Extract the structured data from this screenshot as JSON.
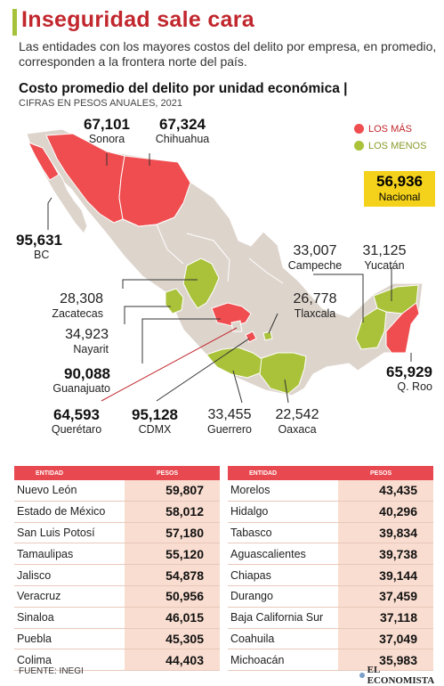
{
  "header": {
    "title": "Inseguridad sale cara",
    "subtitle": "Las entidades con los mayores costos del delito por empresa, en promedio, corresponden a la frontera norte del país."
  },
  "chart_data": {
    "type": "map",
    "title": "Costo promedio del delito por unidad económica",
    "unit": "CIFRAS EN PESOS ANUALES, 2021",
    "legend": [
      {
        "name": "LOS MÁS",
        "color": "#ef4d4f"
      },
      {
        "name": "LOS MENOS",
        "color": "#a9c23a"
      }
    ],
    "nacional": {
      "value": "56,936",
      "label": "Nacional"
    },
    "map_labels": [
      {
        "state": "Sonora",
        "value": "67,101",
        "group": "mas"
      },
      {
        "state": "Chihuahua",
        "value": "67,324",
        "group": "mas"
      },
      {
        "state": "BC",
        "value": "95,631",
        "group": "mas"
      },
      {
        "state": "Zacatecas",
        "value": "28,308",
        "group": "menos"
      },
      {
        "state": "Nayarit",
        "value": "34,923",
        "group": "menos"
      },
      {
        "state": "Guanajuato",
        "value": "90,088",
        "group": "mas"
      },
      {
        "state": "Querétaro",
        "value": "64,593",
        "group": "mas"
      },
      {
        "state": "CDMX",
        "value": "95,128",
        "group": "mas"
      },
      {
        "state": "Guerrero",
        "value": "33,455",
        "group": "menos"
      },
      {
        "state": "Oaxaca",
        "value": "22,542",
        "group": "menos"
      },
      {
        "state": "Campeche",
        "value": "33,007",
        "group": "menos"
      },
      {
        "state": "Yucatán",
        "value": "31,125",
        "group": "menos"
      },
      {
        "state": "Tlaxcala",
        "value": "26,778",
        "group": "menos"
      },
      {
        "state": "Q. Roo",
        "value": "65,929",
        "group": "mas"
      }
    ],
    "table_headers": {
      "entidad": "ENTIDAD",
      "pesos": "PESOS"
    },
    "table_left": [
      {
        "entidad": "Nuevo León",
        "pesos": "59,807"
      },
      {
        "entidad": "Estado de México",
        "pesos": "58,012"
      },
      {
        "entidad": "San Luis Potosí",
        "pesos": "57,180"
      },
      {
        "entidad": "Tamaulipas",
        "pesos": "55,120"
      },
      {
        "entidad": "Jalisco",
        "pesos": "54,878"
      },
      {
        "entidad": "Veracruz",
        "pesos": "50,956"
      },
      {
        "entidad": "Sinaloa",
        "pesos": "46,015"
      },
      {
        "entidad": "Puebla",
        "pesos": "45,305"
      },
      {
        "entidad": "Colima",
        "pesos": "44,403"
      }
    ],
    "table_right": [
      {
        "entidad": "Morelos",
        "pesos": "43,435"
      },
      {
        "entidad": "Hidalgo",
        "pesos": "40,296"
      },
      {
        "entidad": "Tabasco",
        "pesos": "39,834"
      },
      {
        "entidad": "Aguascalientes",
        "pesos": "39,738"
      },
      {
        "entidad": "Chiapas",
        "pesos": "39,144"
      },
      {
        "entidad": "Durango",
        "pesos": "37,459"
      },
      {
        "entidad": "Baja California Sur",
        "pesos": "37,118"
      },
      {
        "entidad": "Coahuila",
        "pesos": "37,049"
      },
      {
        "entidad": "Michoacán",
        "pesos": "35,983"
      }
    ]
  },
  "footer": {
    "source": "FUENTE: INEGI",
    "logo": "EL ECONOMISTA"
  },
  "colors": {
    "accent_red": "#c1272d",
    "mas": "#ef4d4f",
    "menos": "#a9c23a",
    "base": "#ddd4cc",
    "nacional_bg": "#f4d21c"
  }
}
